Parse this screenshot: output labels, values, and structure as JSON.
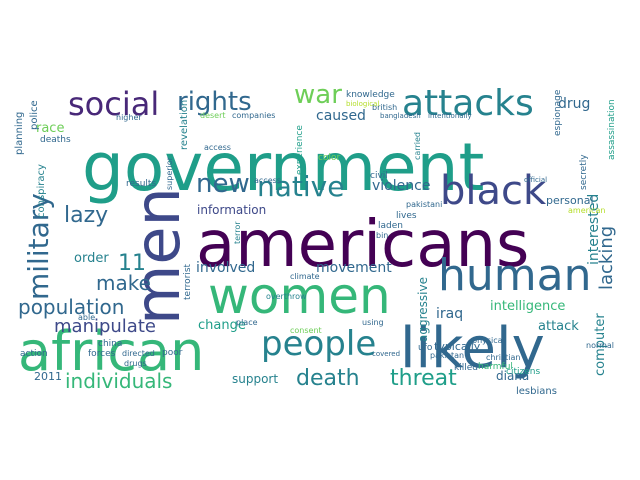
{
  "palette": {
    "darkest": "#440154",
    "purple": "#482878",
    "indigo": "#3e4989",
    "blue": "#31688e",
    "teal": "#26828e",
    "green": "#1f9e89",
    "mint": "#35b779",
    "lime": "#6ece58",
    "yellowgreen": "#b5de2b",
    "yellow": "#fde725"
  },
  "words": [
    "government",
    "americans",
    "men",
    "african",
    "women",
    "likely",
    "human",
    "black",
    "people",
    "attacks",
    "social",
    "rights",
    "war",
    "military",
    "new",
    "native",
    "death",
    "threat",
    "individuals",
    "make",
    "lazy",
    "population",
    "11",
    "manipulate",
    "revelation",
    "caused",
    "violence",
    "drug",
    "lacking",
    "interested",
    "iraq",
    "intelligence",
    "computer",
    "movement",
    "involved",
    "information",
    "order",
    "race",
    "support",
    "diana",
    "attack",
    "aggressive",
    "change",
    "personal",
    "lesbians",
    "2011",
    "typically",
    "conspiracy",
    "harmful",
    "citizens",
    "knowledge",
    "experience",
    "deaths",
    "planning",
    "police",
    "terrorist",
    "assassination",
    "espionage",
    "terror",
    "results",
    "access",
    "civil",
    "carried",
    "pakistani",
    "laden",
    "lives",
    "directed",
    "drugs",
    "forces",
    "poor",
    "action",
    "china",
    "able",
    "color",
    "climate",
    "overthrow",
    "place",
    "consent",
    "using",
    "ufo",
    "killed",
    "physical",
    "christian",
    "companies",
    "higher",
    "desert",
    "covered",
    "bin",
    "british",
    "secretly",
    "superior",
    "access",
    "normal",
    "american",
    "official",
    "pakistan",
    "bangladesh",
    "intentionally",
    "biological"
  ]
}
